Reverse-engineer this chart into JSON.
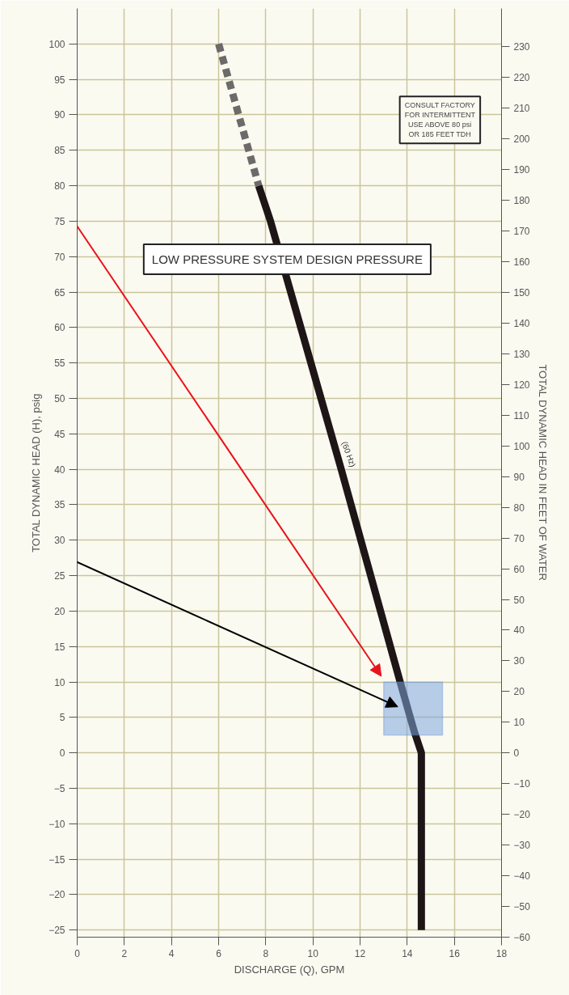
{
  "chart_data": {
    "type": "line",
    "xlabel": "DISCHARGE (Q), GPM",
    "ylabel": "TOTAL DYNAMIC HEAD (H), psig",
    "y2label": "TOTAL DYNAMIC HEAD IN FEET OF WATER",
    "series": [
      {
        "color": "#6e6a6a",
        "line_style": "dashed",
        "x": [
          6,
          7.7
        ],
        "values": [
          100,
          80
        ]
      },
      {
        "color": "#1e1616",
        "line_style": "solid",
        "x": [
          7.7,
          8.2,
          11.2,
          13.7,
          14.3,
          14.6,
          14.6
        ],
        "values": [
          80,
          75,
          40,
          10,
          3,
          0,
          -25
        ]
      }
    ],
    "xlim": [
      0,
      18
    ],
    "xticks": [
      0,
      2,
      4,
      6,
      8,
      10,
      12,
      14,
      16,
      18
    ],
    "ylim": [
      -26,
      105
    ],
    "yticks": [
      -25,
      -20,
      -15,
      -10,
      -5,
      0,
      5,
      10,
      15,
      20,
      25,
      30,
      35,
      40,
      45,
      50,
      55,
      60,
      65,
      70,
      75,
      80,
      85,
      90,
      95,
      100
    ],
    "y2lim": [
      -60,
      242.5
    ],
    "y2ticks": [
      -60,
      -50,
      -40,
      -30,
      -20,
      -10,
      0,
      10,
      20,
      30,
      40,
      50,
      60,
      70,
      80,
      90,
      100,
      110,
      120,
      130,
      140,
      150,
      160,
      170,
      180,
      190,
      200,
      210,
      220,
      230
    ],
    "grid": true,
    "annotations": [
      "LOW PRESSURE SYSTEM DESIGN PRESSURE",
      "CONSULT FACTORY\nFOR INTERMITTENT\nUSE ABOVE 80 psi\nOR 185 FEET TDH",
      "(60 Hz)"
    ],
    "bands": [
      {
        "axis": "y",
        "from": 2.5,
        "to": 10,
        "color": "#7fa6dc"
      }
    ]
  }
}
